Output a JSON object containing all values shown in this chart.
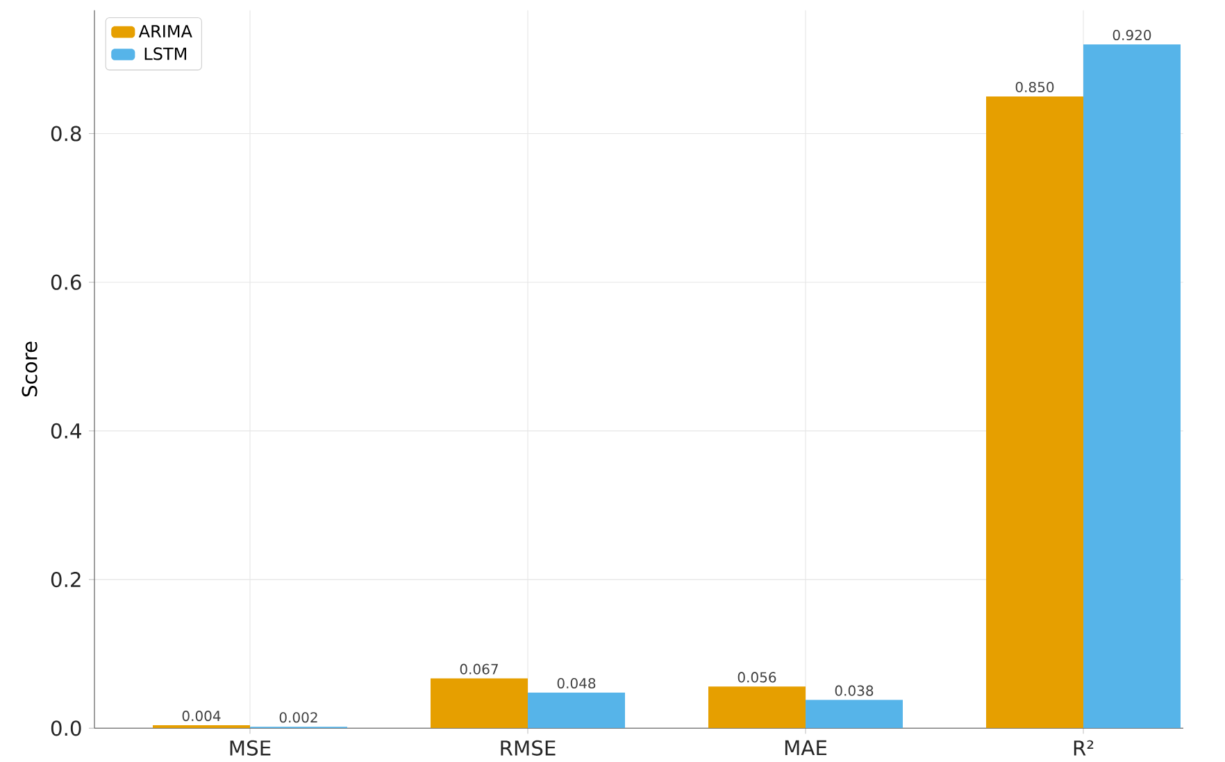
{
  "chart_data": {
    "type": "bar",
    "ylabel": "Score",
    "categories": [
      "MSE",
      "RMSE",
      "MAE",
      "R²"
    ],
    "series": [
      {
        "name": "ARIMA",
        "color": "#e69f00",
        "values": [
          0.004,
          0.067,
          0.056,
          0.85
        ],
        "value_labels": [
          "0.004",
          "0.067",
          "0.056",
          "0.850"
        ]
      },
      {
        "name": "LSTM",
        "color": "#56b4e9",
        "values": [
          0.002,
          0.048,
          0.038,
          0.92
        ],
        "value_labels": [
          "0.002",
          "0.048",
          "0.038",
          "0.920"
        ]
      }
    ],
    "ylim": [
      0,
      0.966
    ],
    "yticks": [
      {
        "value": 0,
        "label": "0.0"
      },
      0.2,
      0.4,
      0.6,
      0.8
    ],
    "grid": true,
    "legend": "top left"
  }
}
